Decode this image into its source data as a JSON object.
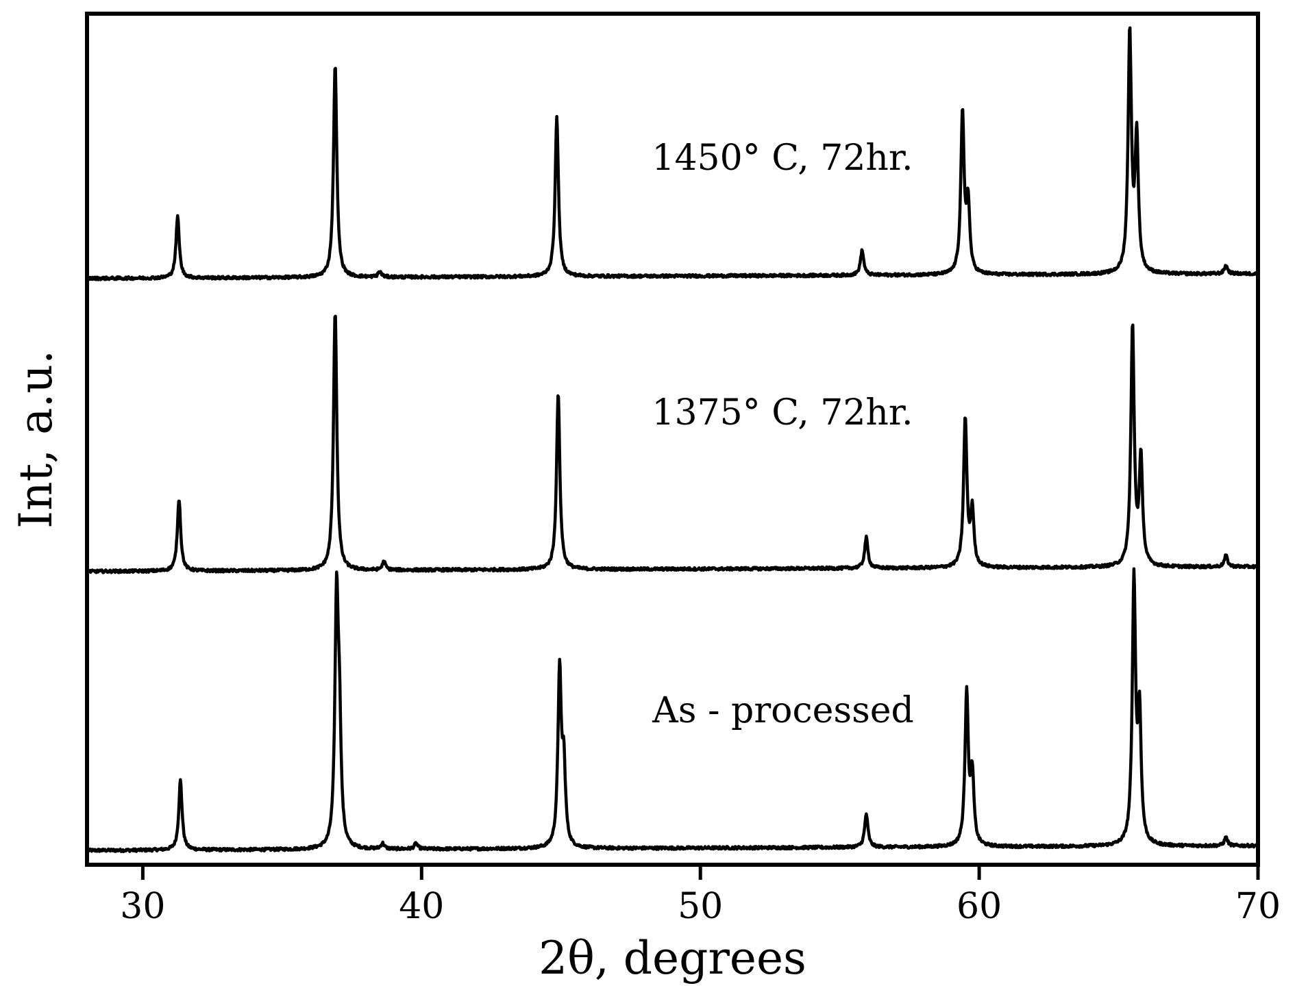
{
  "chart_data": {
    "type": "line",
    "title": "",
    "xlabel": "2θ, degrees",
    "ylabel": "Int, a.u.",
    "xlim": [
      28,
      70
    ],
    "ylim": [
      0,
      3.05
    ],
    "xticks": [
      30,
      40,
      50,
      60,
      70
    ],
    "yticks": [],
    "grid": false,
    "legend": "none",
    "line_color": "#000000",
    "series": [
      {
        "annotation": "As - processed",
        "offset": 0.0,
        "baseline": 0.06,
        "noise": 0.005,
        "peaks": [
          {
            "x": 31.35,
            "h": 0.25
          },
          {
            "x": 36.95,
            "h": 0.86
          },
          {
            "x": 37.05,
            "h": 0.4
          },
          {
            "x": 38.6,
            "h": 0.02
          },
          {
            "x": 39.8,
            "h": 0.02
          },
          {
            "x": 44.95,
            "h": 0.63
          },
          {
            "x": 45.1,
            "h": 0.28
          },
          {
            "x": 55.95,
            "h": 0.12
          },
          {
            "x": 59.55,
            "h": 0.55
          },
          {
            "x": 59.75,
            "h": 0.25
          },
          {
            "x": 65.55,
            "h": 0.94
          },
          {
            "x": 65.75,
            "h": 0.45
          },
          {
            "x": 68.85,
            "h": 0.03
          }
        ]
      },
      {
        "annotation": "1375° C,  72hr.",
        "offset": 1.0,
        "baseline": 0.06,
        "noise": 0.005,
        "peaks": [
          {
            "x": 31.3,
            "h": 0.26
          },
          {
            "x": 36.9,
            "h": 0.93
          },
          {
            "x": 38.65,
            "h": 0.03
          },
          {
            "x": 44.9,
            "h": 0.63
          },
          {
            "x": 55.95,
            "h": 0.11
          },
          {
            "x": 59.5,
            "h": 0.53
          },
          {
            "x": 59.75,
            "h": 0.2
          },
          {
            "x": 65.5,
            "h": 0.86
          },
          {
            "x": 65.8,
            "h": 0.38
          },
          {
            "x": 68.85,
            "h": 0.04
          }
        ]
      },
      {
        "annotation": "1450° C,  72hr.",
        "offset": 2.05,
        "baseline": 0.06,
        "noise": 0.005,
        "peaks": [
          {
            "x": 31.25,
            "h": 0.22
          },
          {
            "x": 36.9,
            "h": 0.76
          },
          {
            "x": 38.5,
            "h": 0.02
          },
          {
            "x": 44.85,
            "h": 0.57
          },
          {
            "x": 55.8,
            "h": 0.09
          },
          {
            "x": 59.4,
            "h": 0.57
          },
          {
            "x": 59.6,
            "h": 0.25
          },
          {
            "x": 65.4,
            "h": 0.86
          },
          {
            "x": 65.65,
            "h": 0.48
          },
          {
            "x": 68.85,
            "h": 0.03
          }
        ]
      }
    ]
  }
}
